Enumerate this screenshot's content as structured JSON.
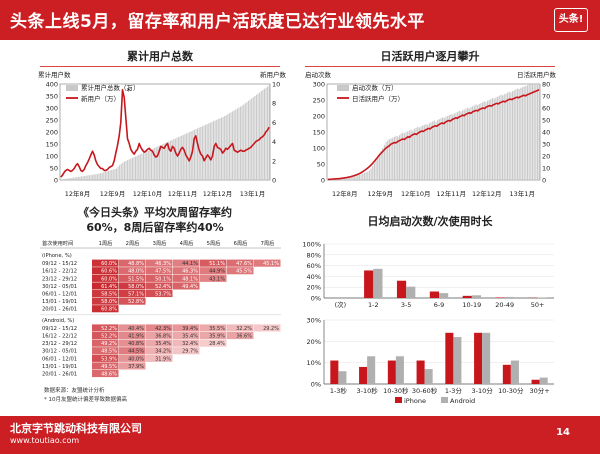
{
  "header": {
    "title": "头条上线5月，留存率和用户活跃度已达行业领先水平",
    "logo_text": "头条!"
  },
  "footer": {
    "company": "北京字节跳动科技有限公司",
    "url": "www.toutiao.com",
    "page": "14"
  },
  "colors": {
    "brand_red": "#cc1f24",
    "series_red": "#c8161d",
    "series_gray": "#b0b0b0"
  },
  "cumulative_chart": {
    "title": "累计用户总数",
    "left_axis_label": "累计用户数",
    "right_axis_label": "新用户数",
    "annotation": "*"
  },
  "daily_chart": {
    "title": "日活跃用户逐月攀升",
    "left_axis_label": "启动次数",
    "right_axis_label": "日活跃用户数"
  },
  "retention": {
    "heading_line1": "《今日头条》平均次周留存率约",
    "heading_line2": "60%，8周后留存率约40%",
    "column_header_first": "首次使用时间",
    "columns": [
      "1周后",
      "2周后",
      "3周后",
      "4周后",
      "5周后",
      "6周后",
      "7周后"
    ],
    "groups": [
      {
        "label": "(iPhone, %)",
        "rows": [
          {
            "date": "09/12 - 15/12",
            "values": [
              "60.0%",
              "48.8%",
              "46.3%",
              "44.1%",
              "51.1%",
              "47.6%",
              "45.1%"
            ]
          },
          {
            "date": "16/12 - 22/12",
            "values": [
              "60.6%",
              "48.0%",
              "47.5%",
              "46.3%",
              "44.9%",
              "45.5%"
            ]
          },
          {
            "date": "23/12 - 29/12",
            "values": [
              "60.0%",
              "51.5%",
              "50.1%",
              "48.1%",
              "43.1%"
            ]
          },
          {
            "date": "30/12 - 05/01",
            "values": [
              "61.4%",
              "58.0%",
              "52.4%",
              "49.4%"
            ]
          },
          {
            "date": "06/01 - 12/01",
            "values": [
              "58.5%",
              "57.1%",
              "53.7%"
            ]
          },
          {
            "date": "13/01 - 19/01",
            "values": [
              "58.0%",
              "52.8%"
            ]
          },
          {
            "date": "20/01 - 26/01",
            "values": [
              "60.8%"
            ]
          }
        ]
      },
      {
        "label": "(Android, %)",
        "rows": [
          {
            "date": "09/12 - 15/12",
            "values": [
              "52.2%",
              "40.4%",
              "42.3%",
              "39.4%",
              "35.5%",
              "32.2%",
              "29.2%"
            ]
          },
          {
            "date": "16/12 - 22/12",
            "values": [
              "52.2%",
              "41.9%",
              "36.8%",
              "35.4%",
              "35.9%",
              "36.6%"
            ]
          },
          {
            "date": "23/12 - 29/12",
            "values": [
              "49.2%",
              "40.8%",
              "35.4%",
              "32.4%",
              "28.4%"
            ]
          },
          {
            "date": "30/12 - 05/01",
            "values": [
              "48.5%",
              "44.5%",
              "34.2%",
              "29.7%"
            ]
          },
          {
            "date": "06/01 - 12/01",
            "values": [
              "53.9%",
              "40.0%",
              "31.9%"
            ]
          },
          {
            "date": "13/01 - 19/01",
            "values": [
              "49.5%",
              "37.9%"
            ]
          },
          {
            "date": "20/01 - 26/01",
            "values": [
              "48.6%"
            ]
          }
        ]
      }
    ],
    "note1": "数据来源：友盟统计分析",
    "note2": "* 10月友盟统计偏差导致数据偏高"
  },
  "duration_title": "日均启动次数/次使用时长",
  "chart_data": [
    {
      "type": "bar",
      "title": "累计用户总数",
      "y_left_label": "累计用户数",
      "y_right_label": "新用户数",
      "ylim_left": [
        0,
        400
      ],
      "yticks_left": [
        0,
        50,
        100,
        150,
        200,
        250,
        300,
        350,
        400
      ],
      "ylim_right": [
        0,
        10
      ],
      "yticks_right": [
        0,
        2,
        4,
        6,
        8,
        10
      ],
      "x_tick_labels": [
        "12年8月",
        "12年9月",
        "12年10月",
        "12年11月",
        "12年12月",
        "13年1月"
      ],
      "series": [
        {
          "name": "累计用户总数（万）",
          "kind": "bar",
          "axis": "left",
          "values": [
            2,
            3,
            4,
            5,
            6,
            7,
            8,
            9,
            10,
            11,
            12,
            13,
            14,
            15,
            16,
            17,
            18,
            19,
            20,
            21,
            22,
            23,
            24,
            25,
            27,
            28,
            30,
            32,
            34,
            36,
            38,
            40,
            42,
            44,
            46,
            48,
            55,
            62,
            68,
            73,
            77,
            80,
            83,
            86,
            89,
            92,
            95,
            98,
            101,
            104,
            107,
            110,
            113,
            116,
            119,
            122,
            125,
            128,
            131,
            134,
            137,
            140,
            143,
            146,
            149,
            152,
            155,
            158,
            161,
            164,
            167,
            170,
            173,
            176,
            179,
            182,
            185,
            188,
            191,
            194,
            197,
            200,
            203,
            206,
            209,
            212,
            215,
            218,
            221,
            224,
            227,
            230,
            233,
            236,
            239,
            242,
            245,
            248,
            251,
            254,
            257,
            260,
            263,
            266,
            270,
            274,
            278,
            282,
            286,
            290,
            294,
            298,
            302,
            306,
            310,
            315,
            320,
            325,
            330,
            335,
            340,
            345,
            350,
            355,
            360,
            365,
            370,
            375,
            380,
            385,
            390,
            395
          ]
        },
        {
          "name": "新用户（万）",
          "kind": "line",
          "axis": "right",
          "values": [
            0.3,
            0.5,
            0.8,
            1.0,
            1.1,
            1.0,
            0.9,
            1.0,
            1.2,
            1.5,
            1.7,
            1.4,
            1.0,
            0.9,
            1.1,
            1.5,
            1.8,
            2.2,
            2.6,
            3.0,
            2.6,
            2.0,
            1.6,
            1.4,
            1.2,
            1.2,
            1.0,
            1.0,
            1.1,
            1.3,
            1.4,
            1.5,
            2.0,
            2.8,
            3.6,
            4.6,
            6.0,
            9.4,
            8.6,
            6.5,
            4.3,
            3.8,
            3.2,
            2.9,
            2.7,
            3.0,
            3.2,
            3.8,
            3.4,
            3.1,
            2.9,
            3.0,
            3.2,
            3.3,
            3.1,
            3.0,
            2.6,
            2.4,
            2.5,
            3.0,
            3.5,
            3.4,
            3.3,
            3.6,
            3.8,
            3.2,
            3.0,
            3.5,
            3.3,
            2.8,
            2.5,
            2.8,
            3.2,
            3.4,
            3.1,
            2.6,
            2.3,
            2.0,
            2.4,
            3.0,
            4.3,
            4.6,
            3.8,
            3.1,
            2.7,
            2.5,
            2.0,
            2.3,
            2.6,
            2.4,
            2.1,
            2.5,
            3.5,
            3.8,
            3.4,
            3.3,
            3.2,
            2.8,
            3.0,
            3.3,
            3.2,
            3.4,
            3.6,
            3.8,
            3.1,
            3.0,
            2.9,
            3.0,
            3.1,
            3.0,
            3.0,
            3.1,
            3.2,
            3.3,
            3.4,
            3.6,
            3.8,
            4.0,
            4.1,
            4.2,
            4.4,
            4.5,
            4.7,
            5.0,
            5.2,
            5.5
          ]
        }
      ]
    },
    {
      "type": "bar",
      "title": "日活跃用户逐月攀升",
      "y_left_label": "启动次数",
      "y_right_label": "日活跃用户数",
      "ylim_left": [
        0,
        300
      ],
      "yticks_left": [
        0,
        50,
        100,
        150,
        200,
        250,
        300
      ],
      "ylim_right": [
        0,
        80
      ],
      "yticks_right": [
        0,
        10,
        20,
        30,
        40,
        50,
        60,
        70,
        80
      ],
      "x_tick_labels": [
        "12年8月",
        "12年9月",
        "12年10月",
        "12年11月",
        "12年12月",
        "13年1月"
      ],
      "series": [
        {
          "name": "启动次数（万）",
          "kind": "bar",
          "axis": "left",
          "values": [
            2,
            3,
            3,
            4,
            4,
            5,
            5,
            6,
            6,
            7,
            7,
            8,
            9,
            10,
            11,
            12,
            13,
            14,
            15,
            16,
            18,
            20,
            22,
            24,
            26,
            30,
            36,
            44,
            52,
            60,
            70,
            80,
            90,
            100,
            110,
            118,
            124,
            128,
            130,
            132,
            135,
            138,
            136,
            140,
            145,
            148,
            146,
            150,
            152,
            155,
            158,
            154,
            160,
            163,
            166,
            164,
            168,
            170,
            172,
            175,
            172,
            178,
            180,
            183,
            186,
            182,
            188,
            190,
            193,
            196,
            194,
            198,
            200,
            203,
            206,
            204,
            208,
            210,
            213,
            216,
            214,
            218,
            220,
            223,
            226,
            224,
            228,
            230,
            233,
            236,
            234,
            238,
            240,
            243,
            246,
            244,
            248,
            250,
            253,
            256,
            254,
            258,
            260,
            263,
            266,
            264,
            268,
            270,
            273,
            276,
            274,
            278,
            280,
            283,
            286,
            284,
            288,
            290,
            292,
            294,
            296,
            298,
            300,
            300,
            300,
            300,
            300,
            300
          ]
        },
        {
          "name": "日活跃用户（万）",
          "kind": "line",
          "axis": "right",
          "values": [
            0.5,
            0.6,
            0.7,
            0.8,
            0.9,
            1.0,
            1.1,
            1.2,
            1.4,
            1.6,
            1.8,
            2.0,
            2.3,
            2.6,
            3.0,
            3.4,
            3.9,
            4.4,
            5.0,
            5.7,
            6.5,
            7.4,
            8.4,
            9.5,
            10.7,
            12.0,
            13.5,
            15.1,
            16.8,
            18.6,
            20.5,
            22.0,
            23.5,
            25.0,
            26.5,
            27.5,
            28.5,
            29.8,
            30.5,
            31.2,
            31.0,
            32.0,
            32.8,
            33.5,
            34.2,
            33.8,
            35.0,
            36.0,
            35.6,
            37.0,
            37.8,
            38.5,
            38.0,
            39.2,
            40.0,
            40.8,
            40.4,
            41.5,
            42.2,
            43.0,
            42.6,
            43.8,
            44.5,
            45.2,
            44.8,
            46.0,
            46.8,
            47.5,
            47.0,
            48.2,
            49.0,
            49.6,
            49.2,
            50.4,
            51.0,
            51.8,
            51.4,
            52.6,
            53.2,
            54.0,
            53.6,
            54.8,
            55.4,
            56.0,
            55.6,
            56.8,
            57.4,
            58.0,
            57.6,
            58.8,
            59.4,
            60.0,
            59.6,
            60.8,
            61.4,
            62.0,
            61.6,
            62.6,
            63.2,
            63.8,
            63.4,
            64.4,
            65.0,
            65.6,
            65.2,
            66.2,
            66.8,
            67.4,
            67.0,
            67.8,
            68.4,
            69.0,
            68.6,
            69.4,
            70.0,
            70.6,
            70.2,
            71.0,
            71.6,
            72.2,
            72.8,
            73.4,
            74.0,
            74.6,
            75.2
          ]
        }
      ]
    },
    {
      "type": "bar",
      "x_prefix": "(次)",
      "categories": [
        "1-2",
        "3-5",
        "6-9",
        "10-19",
        "20-49",
        "50+"
      ],
      "ylim": [
        0,
        100
      ],
      "yticks": [
        "0%",
        "20%",
        "40%",
        "60%",
        "80%",
        "100%"
      ],
      "series": [
        {
          "name": "iPhone",
          "values": [
            51,
            32,
            12,
            4,
            1,
            0.5
          ]
        },
        {
          "name": "Android",
          "values": [
            54,
            21,
            9,
            5,
            2,
            0.8
          ]
        }
      ]
    },
    {
      "type": "bar",
      "categories": [
        "1-3秒",
        "3-10秒",
        "10-30秒",
        "30-60秒",
        "1-3分",
        "3-10分",
        "10-30分",
        "30分+"
      ],
      "ylim": [
        0,
        30
      ],
      "yticks": [
        "0%",
        "10%",
        "20%",
        "30%"
      ],
      "series": [
        {
          "name": "iPhone",
          "values": [
            11,
            8,
            11,
            11,
            24,
            24,
            9,
            2
          ]
        },
        {
          "name": "Android",
          "values": [
            6,
            13,
            13,
            7,
            22,
            24,
            11,
            3
          ]
        }
      ],
      "legend": "bottom"
    }
  ]
}
